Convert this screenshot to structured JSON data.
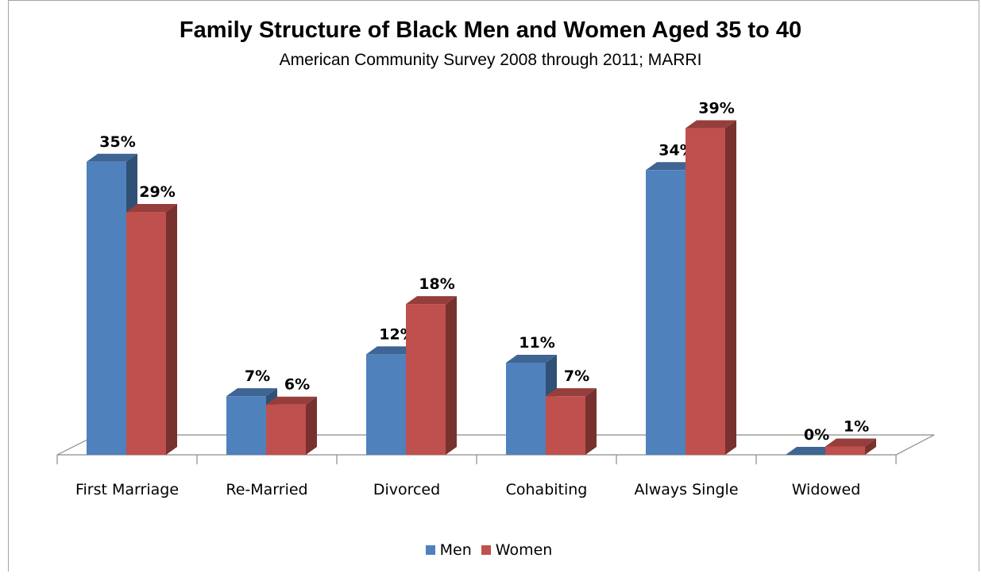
{
  "chart_data": {
    "type": "bar",
    "title": "Family Structure of Black Men and Women Aged 35 to 40",
    "subtitle": "American Community Survey 2008 through 2011; MARRI",
    "categories": [
      "First Marriage",
      "Re-Married",
      "Divorced",
      "Cohabiting",
      "Always Single",
      "Widowed"
    ],
    "series": [
      {
        "name": "Men",
        "values": [
          35,
          7,
          12,
          11,
          34,
          0
        ],
        "labels": [
          "35%",
          "7%",
          "12%",
          "11%",
          "34%",
          "0%"
        ],
        "color": "#4f81bd"
      },
      {
        "name": "Women",
        "values": [
          29,
          6,
          18,
          7,
          39,
          1
        ],
        "labels": [
          "29%",
          "6%",
          "18%",
          "7%",
          "39%",
          "1%"
        ],
        "color": "#c0504d"
      }
    ],
    "ylim": [
      0,
      40
    ],
    "grid": false,
    "legend_position": "bottom",
    "style": "3d-clustered-column"
  }
}
